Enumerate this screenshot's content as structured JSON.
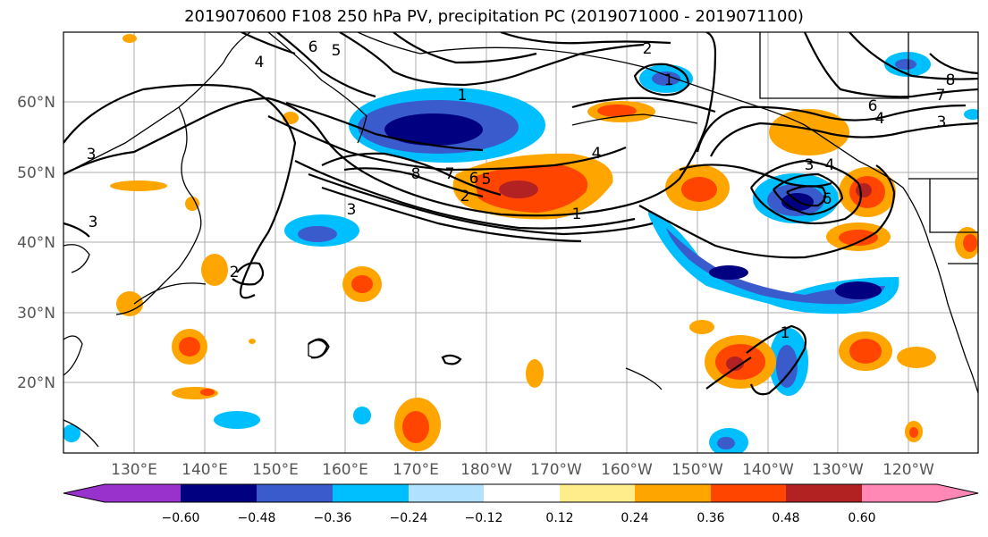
{
  "title": "2019070600 F108 250 hPa PV, precipitation PC (2019071000 - 2019071100)",
  "map": {
    "projection": "cylindrical",
    "lon_range": [
      120,
      250
    ],
    "lat_range": [
      10,
      70
    ],
    "lat_ticks": [
      "20°N",
      "30°N",
      "40°N",
      "50°N",
      "60°N"
    ],
    "lon_ticks": [
      "130°E",
      "140°E",
      "150°E",
      "160°E",
      "170°E",
      "180°W",
      "170°W",
      "160°W",
      "150°W",
      "140°W",
      "130°W",
      "120°W"
    ],
    "gridlines": true
  },
  "colorbar": {
    "labels": [
      "−0.60",
      "−0.48",
      "−0.36",
      "−0.24",
      "−0.12",
      "0.12",
      "0.24",
      "0.36",
      "0.48",
      "0.60"
    ],
    "bin_colors": [
      "#9932CC",
      "#000080",
      "#3A5BCC",
      "#00BFFF",
      "#B0E2FF",
      "#FFFFFF",
      "#FFEC8B",
      "#FFA500",
      "#FF4500",
      "#B22222",
      "#FF88B5"
    ],
    "extend": "both"
  },
  "pv_contour_labels": [
    "2",
    "6",
    "5",
    "4",
    "1",
    "1",
    "3",
    "8",
    "7",
    "6",
    "5",
    "2",
    "4",
    "1",
    "3",
    "4",
    "3",
    "6",
    "1",
    "2",
    "3",
    "6",
    "4",
    "3",
    "8",
    "7"
  ],
  "colors": {
    "axes_frame": "#000000",
    "gridline": "#999999",
    "coastline": "#000000",
    "contour": "#000000"
  }
}
